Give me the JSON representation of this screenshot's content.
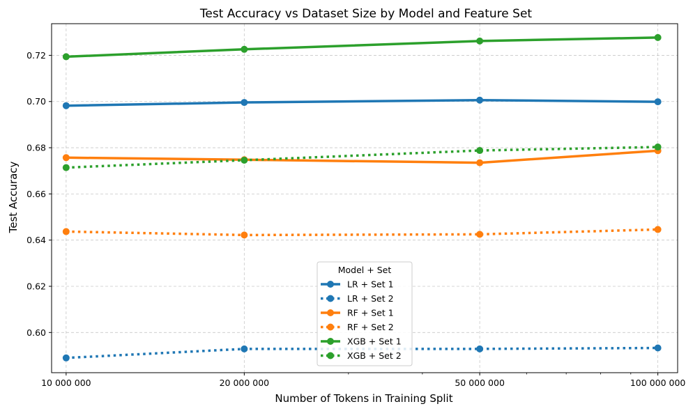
{
  "chart_data": {
    "type": "line",
    "title": "Test Accuracy vs Dataset Size by Model and Feature Set",
    "xlabel": "Number of Tokens in Training Split",
    "ylabel": "Test Accuracy",
    "x_scale": "log",
    "x": [
      10000000,
      20000000,
      50000000,
      100000000
    ],
    "x_tick_labels": [
      "10 000 000",
      "20 000 000",
      "50 000 000",
      "100 000 000"
    ],
    "xlim": [
      9450000,
      108000000
    ],
    "ylim": [
      0.5826,
      0.7337
    ],
    "y_ticks": [
      0.6,
      0.62,
      0.64,
      0.66,
      0.68,
      0.7,
      0.72
    ],
    "y_tick_labels": [
      "0.60",
      "0.62",
      "0.64",
      "0.66",
      "0.68",
      "0.70",
      "0.72"
    ],
    "grid": true,
    "legend": {
      "title": "Model + Set",
      "position": "bottom-center"
    },
    "series": [
      {
        "name": "LR + Set 1",
        "color": "#1f77b4",
        "style": "solid",
        "values": [
          0.6982,
          0.6996,
          0.7006,
          0.6999
        ]
      },
      {
        "name": "LR + Set 2",
        "color": "#1f77b4",
        "style": "dotted",
        "values": [
          0.589,
          0.5929,
          0.5929,
          0.5933
        ]
      },
      {
        "name": "RF + Set 1",
        "color": "#ff7f0e",
        "style": "solid",
        "values": [
          0.6757,
          0.6748,
          0.6735,
          0.6787
        ]
      },
      {
        "name": "RF + Set 2",
        "color": "#ff7f0e",
        "style": "dotted",
        "values": [
          0.6437,
          0.6422,
          0.6425,
          0.6446
        ]
      },
      {
        "name": "XGB + Set 1",
        "color": "#2ca02c",
        "style": "solid",
        "values": [
          0.7194,
          0.7226,
          0.7262,
          0.7277
        ]
      },
      {
        "name": "XGB + Set 2",
        "color": "#2ca02c",
        "style": "dotted",
        "values": [
          0.6714,
          0.6746,
          0.6788,
          0.6803
        ]
      }
    ]
  }
}
